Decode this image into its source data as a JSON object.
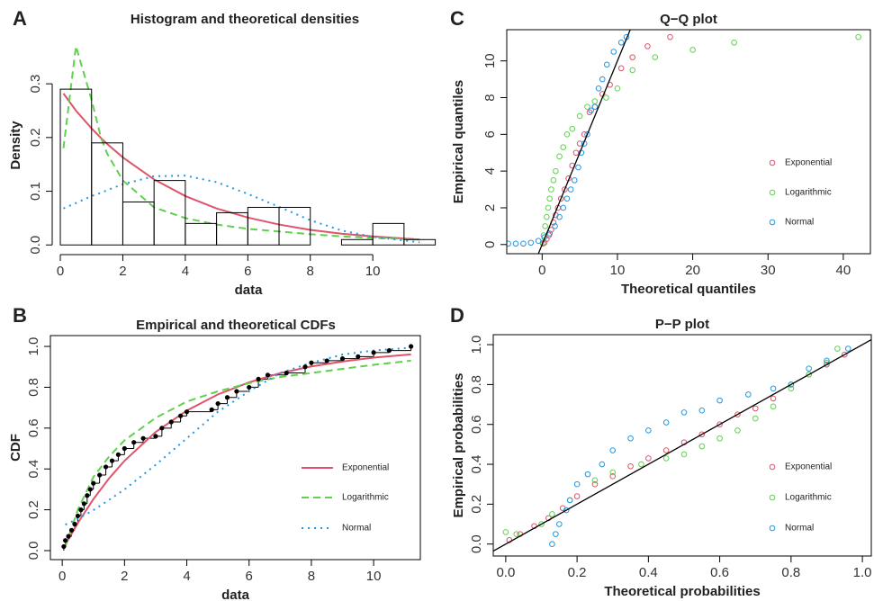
{
  "chart_data": [
    {
      "type": "histogram",
      "label": "A",
      "title": "Histogram and theoretical densities",
      "xlabel": "data",
      "ylabel": "Density",
      "bins": [
        0,
        1,
        2,
        3,
        4,
        5,
        6,
        7,
        8,
        9,
        10,
        11,
        12
      ],
      "values": [
        0.29,
        0.19,
        0.08,
        0.12,
        0.04,
        0.06,
        0.07,
        0.07,
        0,
        0.01,
        0.04,
        0.01
      ],
      "bar_color": "#000000",
      "curve_x": [
        0.1,
        0.5,
        1,
        1.3,
        1.5,
        2,
        3,
        4,
        5,
        6,
        7,
        8,
        9,
        10,
        11.5
      ],
      "series": [
        {
          "color": "#DF536B",
          "dash": "solid",
          "values": [
            0.282,
            0.25,
            0.217,
            0.199,
            0.188,
            0.163,
            0.122,
            0.091,
            0.068,
            0.051,
            0.038,
            0.028,
            0.021,
            0.016,
            0.01
          ]
        },
        {
          "color": "#61D04F",
          "dash": "dashed",
          "values": [
            0.18,
            0.37,
            0.27,
            0.2,
            0.17,
            0.12,
            0.07,
            0.05,
            0.038,
            0.03,
            0.025,
            0.02,
            0.016,
            0.013,
            0.01
          ]
        },
        {
          "color": "#2297E6",
          "dash": "dotted",
          "values": [
            0.068,
            0.078,
            0.091,
            0.097,
            0.102,
            0.113,
            0.128,
            0.129,
            0.117,
            0.095,
            0.071,
            0.046,
            0.027,
            0.015,
            0.005
          ]
        }
      ],
      "xlim": [
        -0.26,
        12.3
      ],
      "ylim": [
        -0.018,
        0.389
      ],
      "xticks": [
        0,
        2,
        4,
        6,
        8,
        10
      ],
      "yticks": [
        {
          "value": 0,
          "label": "0.0"
        },
        0.1,
        0.2,
        0.3
      ],
      "frame": "axes"
    },
    {
      "type": "cdf",
      "label": "B",
      "title": "Empirical and theoretical CDFs",
      "xlabel": "data",
      "ylabel": "CDF",
      "empirical": {
        "color": "#000000",
        "x": [
          0.05,
          0.1,
          0.2,
          0.3,
          0.4,
          0.5,
          0.6,
          0.7,
          0.8,
          0.9,
          1.0,
          1.2,
          1.4,
          1.6,
          1.8,
          2.0,
          2.3,
          2.6,
          3.0,
          3.2,
          3.5,
          3.8,
          4.0,
          4.8,
          5.0,
          5.3,
          5.6,
          6.0,
          6.3,
          6.6,
          7.2,
          7.8,
          8.0,
          8.5,
          9.0,
          9.5,
          10.0,
          10.5,
          11.2
        ],
        "values": [
          0.02,
          0.05,
          0.07,
          0.1,
          0.13,
          0.17,
          0.2,
          0.23,
          0.27,
          0.3,
          0.33,
          0.37,
          0.41,
          0.44,
          0.47,
          0.5,
          0.53,
          0.55,
          0.56,
          0.6,
          0.63,
          0.66,
          0.68,
          0.69,
          0.72,
          0.75,
          0.78,
          0.8,
          0.84,
          0.86,
          0.87,
          0.9,
          0.92,
          0.93,
          0.94,
          0.95,
          0.97,
          0.98,
          1.0
        ]
      },
      "curve_x": [
        0.1,
        0.5,
        1,
        1.5,
        2,
        3,
        4,
        5,
        6,
        7,
        8,
        9,
        10,
        11.2
      ],
      "series": [
        {
          "name": "Exponential",
          "color": "#DF536B",
          "dash": "solid",
          "values": [
            0.029,
            0.135,
            0.252,
            0.353,
            0.44,
            0.581,
            0.686,
            0.765,
            0.824,
            0.869,
            0.902,
            0.926,
            0.945,
            0.961
          ]
        },
        {
          "name": "Logarithmic",
          "color": "#61D04F",
          "dash": "dashed",
          "values": [
            0.02,
            0.2,
            0.36,
            0.46,
            0.54,
            0.65,
            0.73,
            0.78,
            0.82,
            0.85,
            0.87,
            0.89,
            0.91,
            0.93
          ]
        },
        {
          "name": "Normal",
          "color": "#2297E6",
          "dash": "dotted",
          "values": [
            0.127,
            0.156,
            0.198,
            0.248,
            0.3,
            0.42,
            0.55,
            0.68,
            0.78,
            0.87,
            0.92,
            0.96,
            0.98,
            0.993
          ]
        }
      ],
      "legend": "right",
      "xlim": [
        -0.38,
        11.5
      ],
      "ylim": [
        -0.044,
        1.053
      ],
      "xticks": [
        0,
        2,
        4,
        6,
        8,
        10
      ],
      "yticks": [
        {
          "value": 0,
          "label": "0.0"
        },
        0.2,
        0.4,
        0.6,
        0.8,
        {
          "value": 1,
          "label": "1.0"
        }
      ],
      "frame": "box"
    },
    {
      "type": "scatter",
      "label": "C",
      "title": "Q−Q plot",
      "xlabel": "Theoretical quantiles",
      "ylabel": "Empirical quantiles",
      "diagonal": true,
      "legend": "right",
      "series": [
        {
          "name": "Exponential",
          "color": "#DF536B",
          "x": [
            0.1,
            0.3,
            0.6,
            0.9,
            1.2,
            1.5,
            1.8,
            2.1,
            2.5,
            3,
            3.5,
            4,
            4.5,
            5,
            5.6,
            6.3,
            7,
            8,
            9,
            10.5,
            12,
            14,
            17
          ],
          "values": [
            0.05,
            0.1,
            0.3,
            0.5,
            0.8,
            1.2,
            1.6,
            2,
            2.5,
            3,
            3.6,
            4.3,
            5,
            5.5,
            6,
            7.2,
            7.5,
            8.2,
            8.7,
            9.6,
            10.2,
            10.8,
            11.3
          ]
        },
        {
          "name": "Logarithmic",
          "color": "#61D04F",
          "x": [
            0.1,
            0.2,
            0.4,
            0.6,
            0.8,
            1,
            1.2,
            1.5,
            1.8,
            2.3,
            2.8,
            3.3,
            4,
            5,
            6,
            7,
            8.5,
            10,
            12,
            15,
            20,
            25.5,
            42
          ],
          "values": [
            0.1,
            0.5,
            1,
            1.5,
            2,
            2.5,
            3,
            3.5,
            4,
            4.8,
            5.3,
            6,
            6.3,
            7,
            7.5,
            7.8,
            8,
            8.5,
            9.5,
            10.2,
            10.6,
            11,
            11.3
          ]
        },
        {
          "name": "Normal",
          "color": "#2297E6",
          "x": [
            -4.5,
            -3.5,
            -2.5,
            -1.5,
            -0.5,
            0.3,
            1,
            1.7,
            2.3,
            2.8,
            3.3,
            3.8,
            4.3,
            4.8,
            5.2,
            5.6,
            6,
            6.5,
            7,
            7.5,
            8,
            8.6,
            9.5,
            10.5,
            11.2
          ],
          "values": [
            0.05,
            0.05,
            0.05,
            0.1,
            0.2,
            0.4,
            0.6,
            1,
            1.5,
            2,
            2.5,
            3,
            3.5,
            4.2,
            5,
            5.5,
            6,
            7.3,
            7.5,
            8.5,
            9,
            9.8,
            10.5,
            11,
            11.3
          ]
        }
      ],
      "xlim": [
        -4.7,
        43.6
      ],
      "ylim": [
        -0.5,
        11.7
      ],
      "xticks": [
        0,
        10,
        20,
        30,
        40
      ],
      "yticks": [
        0,
        2,
        4,
        6,
        8,
        10
      ],
      "frame": "box"
    },
    {
      "type": "scatter",
      "label": "D",
      "title": "P−P plot",
      "xlabel": "Theoretical probabilities",
      "ylabel": "Empirical probabilities",
      "diagonal": true,
      "legend": "right",
      "series": [
        {
          "name": "Exponential",
          "color": "#DF536B",
          "x": [
            0.01,
            0.04,
            0.08,
            0.12,
            0.16,
            0.2,
            0.25,
            0.3,
            0.35,
            0.4,
            0.45,
            0.5,
            0.55,
            0.6,
            0.65,
            0.7,
            0.75,
            0.8,
            0.85,
            0.9,
            0.95
          ],
          "values": [
            0.02,
            0.05,
            0.09,
            0.13,
            0.18,
            0.24,
            0.3,
            0.34,
            0.39,
            0.43,
            0.47,
            0.51,
            0.55,
            0.6,
            0.65,
            0.68,
            0.73,
            0.8,
            0.85,
            0.9,
            0.95
          ]
        },
        {
          "name": "Logarithmic",
          "color": "#61D04F",
          "x": [
            0,
            0.03,
            0.1,
            0.13,
            0.18,
            0.25,
            0.3,
            0.38,
            0.45,
            0.5,
            0.55,
            0.6,
            0.65,
            0.7,
            0.75,
            0.8,
            0.85,
            0.9,
            0.93
          ],
          "values": [
            0.06,
            0.05,
            0.1,
            0.15,
            0.22,
            0.32,
            0.36,
            0.4,
            0.43,
            0.45,
            0.49,
            0.53,
            0.57,
            0.63,
            0.69,
            0.78,
            0.85,
            0.91,
            0.98
          ]
        },
        {
          "name": "Normal",
          "color": "#2297E6",
          "x": [
            0.13,
            0.14,
            0.15,
            0.17,
            0.18,
            0.2,
            0.23,
            0.27,
            0.3,
            0.35,
            0.4,
            0.45,
            0.5,
            0.55,
            0.6,
            0.68,
            0.75,
            0.8,
            0.85,
            0.9,
            0.96
          ],
          "values": [
            0,
            0.05,
            0.1,
            0.17,
            0.22,
            0.3,
            0.35,
            0.4,
            0.47,
            0.53,
            0.57,
            0.61,
            0.66,
            0.67,
            0.72,
            0.75,
            0.78,
            0.8,
            0.88,
            0.92,
            0.98
          ]
        }
      ],
      "xlim": [
        -0.035,
        1.025
      ],
      "ylim": [
        -0.06,
        1.05
      ],
      "xticks": [
        {
          "value": 0,
          "label": "0.0"
        },
        0.2,
        0.4,
        0.6,
        0.8,
        {
          "value": 1,
          "label": "1.0"
        }
      ],
      "yticks": [
        {
          "value": 0,
          "label": "0.0"
        },
        0.2,
        0.4,
        0.6,
        0.8,
        {
          "value": 1,
          "label": "1.0"
        }
      ],
      "frame": "box"
    }
  ]
}
